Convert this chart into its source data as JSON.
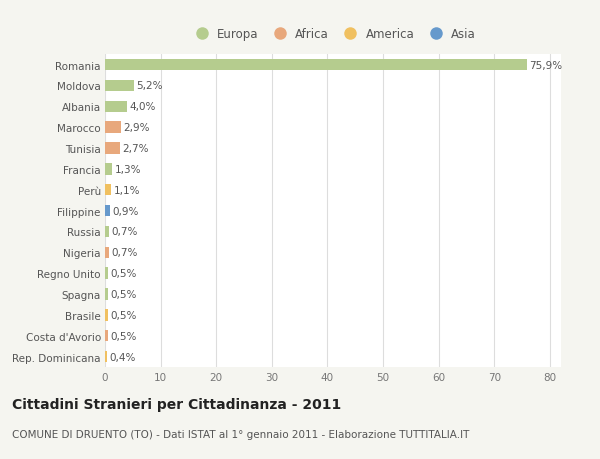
{
  "countries": [
    "Romania",
    "Moldova",
    "Albania",
    "Marocco",
    "Tunisia",
    "Francia",
    "Perù",
    "Filippine",
    "Russia",
    "Nigeria",
    "Regno Unito",
    "Spagna",
    "Brasile",
    "Costa d'Avorio",
    "Rep. Dominicana"
  ],
  "values": [
    75.9,
    5.2,
    4.0,
    2.9,
    2.7,
    1.3,
    1.1,
    0.9,
    0.7,
    0.7,
    0.5,
    0.5,
    0.5,
    0.5,
    0.4
  ],
  "labels": [
    "75,9%",
    "5,2%",
    "4,0%",
    "2,9%",
    "2,7%",
    "1,3%",
    "1,1%",
    "0,9%",
    "0,7%",
    "0,7%",
    "0,5%",
    "0,5%",
    "0,5%",
    "0,5%",
    "0,4%"
  ],
  "continents": [
    "Europa",
    "Europa",
    "Europa",
    "Africa",
    "Africa",
    "Europa",
    "America",
    "Asia",
    "Europa",
    "Africa",
    "Europa",
    "Europa",
    "America",
    "Africa",
    "America"
  ],
  "continent_colors": {
    "Europa": "#b5cc8e",
    "Africa": "#e8a87c",
    "America": "#f0c060",
    "Asia": "#6699cc"
  },
  "legend_order": [
    "Europa",
    "Africa",
    "America",
    "Asia"
  ],
  "legend_colors": [
    "#b5cc8e",
    "#e8a87c",
    "#f0c060",
    "#6699cc"
  ],
  "background_color": "#f5f5f0",
  "plot_bg_color": "#ffffff",
  "grid_color": "#dddddd",
  "bar_height": 0.55,
  "xlim": [
    0,
    82
  ],
  "xticks": [
    0,
    10,
    20,
    30,
    40,
    50,
    60,
    70,
    80
  ],
  "title": "Cittadini Stranieri per Cittadinanza - 2011",
  "subtitle": "COMUNE DI DRUENTO (TO) - Dati ISTAT al 1° gennaio 2011 - Elaborazione TUTTITALIA.IT",
  "title_fontsize": 10,
  "subtitle_fontsize": 7.5,
  "tick_fontsize": 7.5,
  "label_fontsize": 7.5,
  "legend_fontsize": 8.5
}
